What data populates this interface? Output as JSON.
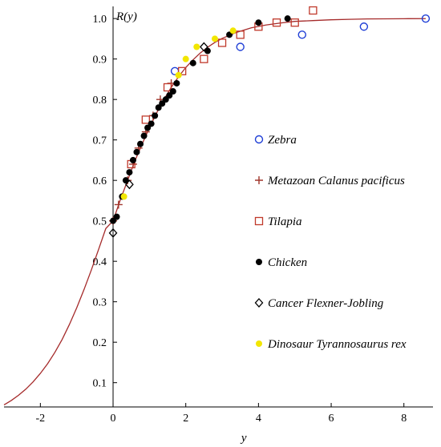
{
  "chart_data": {
    "type": "scatter",
    "title": "",
    "xlabel": "y",
    "ylabel": "R(y)",
    "xlim": [
      -3,
      8.8
    ],
    "ylim": [
      0.04,
      1.03
    ],
    "x_ticks": [
      -2,
      0,
      2,
      4,
      6,
      8
    ],
    "y_ticks": [
      0.1,
      0.2,
      0.3,
      0.4,
      0.5,
      0.6,
      0.7,
      0.8,
      0.9,
      1.0
    ],
    "grid": false,
    "legend_position": "right",
    "curve": {
      "type": "line",
      "color": "#a52a2a",
      "x": [
        -3.0,
        -2.8,
        -2.6,
        -2.4,
        -2.2,
        -2.0,
        -1.8,
        -1.6,
        -1.4,
        -1.2,
        -1.0,
        -0.8,
        -0.6,
        -0.4,
        -0.2,
        0.0,
        0.2,
        0.4,
        0.6,
        0.8,
        1.0,
        1.2,
        1.4,
        1.6,
        1.8,
        2.0,
        2.2,
        2.4,
        2.6,
        2.8,
        3.0,
        3.4,
        3.8,
        4.2,
        4.6,
        5.0,
        5.5,
        6.0,
        6.5,
        7.0,
        7.5,
        8.0,
        8.6
      ],
      "y": [
        0.045,
        0.056,
        0.069,
        0.084,
        0.102,
        0.123,
        0.147,
        0.175,
        0.207,
        0.244,
        0.285,
        0.33,
        0.378,
        0.429,
        0.481,
        0.5,
        0.552,
        0.6,
        0.648,
        0.69,
        0.73,
        0.767,
        0.8,
        0.83,
        0.856,
        0.879,
        0.898,
        0.915,
        0.929,
        0.941,
        0.951,
        0.966,
        0.977,
        0.984,
        0.989,
        0.993,
        0.995,
        0.997,
        0.998,
        0.999,
        0.9993,
        0.9996,
        0.9998
      ]
    },
    "series": [
      {
        "name": "Zebra",
        "marker": "open-circle",
        "color": "#1f3fd6",
        "x": [
          1.7,
          3.5,
          5.2,
          6.9,
          8.6
        ],
        "y": [
          0.87,
          0.93,
          0.96,
          0.98,
          1.0
        ]
      },
      {
        "name": "Metazoan Calanus pacificus",
        "marker": "plus",
        "color": "#a0352a",
        "x": [
          0.0,
          0.15,
          0.4,
          0.55,
          0.7,
          0.9,
          1.1,
          1.3,
          1.6
        ],
        "y": [
          0.5,
          0.54,
          0.6,
          0.64,
          0.68,
          0.72,
          0.76,
          0.8,
          0.84
        ]
      },
      {
        "name": "Tilapia",
        "marker": "open-square",
        "color": "#c0392b",
        "x": [
          0.5,
          0.9,
          1.5,
          1.9,
          2.5,
          3.0,
          3.5,
          4.0,
          4.5,
          5.0,
          5.5
        ],
        "y": [
          0.64,
          0.75,
          0.83,
          0.87,
          0.9,
          0.94,
          0.96,
          0.98,
          0.99,
          0.99,
          1.02
        ]
      },
      {
        "name": "Chicken",
        "marker": "filled-circle",
        "color": "#000000",
        "x": [
          0.0,
          0.1,
          0.25,
          0.35,
          0.45,
          0.55,
          0.65,
          0.75,
          0.85,
          0.95,
          1.05,
          1.15,
          1.25,
          1.35,
          1.45,
          1.55,
          1.65,
          1.75,
          2.2,
          2.6,
          3.2,
          4.0,
          4.8
        ],
        "y": [
          0.5,
          0.51,
          0.56,
          0.6,
          0.62,
          0.65,
          0.67,
          0.69,
          0.71,
          0.73,
          0.74,
          0.76,
          0.78,
          0.79,
          0.8,
          0.81,
          0.82,
          0.84,
          0.89,
          0.92,
          0.96,
          0.99,
          1.0
        ]
      },
      {
        "name": "Cancer Flexner-Jobling",
        "marker": "open-diamond",
        "color": "#000000",
        "x": [
          0.0,
          0.45,
          2.5
        ],
        "y": [
          0.47,
          0.59,
          0.93
        ]
      },
      {
        "name": "Dinosaur Tyrannosaurus rex",
        "marker": "filled-circle",
        "color": "#f2e600",
        "x": [
          0.3,
          1.8,
          2.0,
          2.3,
          2.8,
          3.3
        ],
        "y": [
          0.56,
          0.86,
          0.9,
          0.93,
          0.95,
          0.97
        ]
      }
    ]
  }
}
